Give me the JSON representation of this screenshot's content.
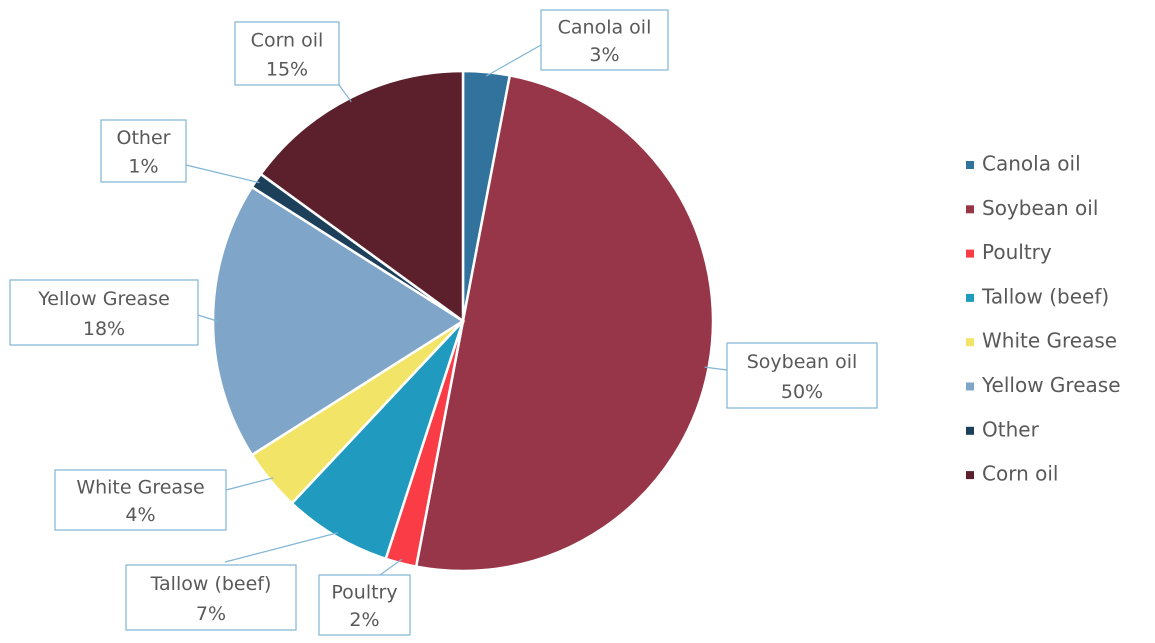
{
  "chart_data": {
    "type": "pie",
    "categories": [
      "Canola oil",
      "Soybean oil",
      "Poultry",
      "Tallow (beef)",
      "White Grease",
      "Yellow Grease",
      "Other",
      "Corn oil"
    ],
    "values": [
      3,
      50,
      2,
      7,
      4,
      18,
      1,
      15
    ],
    "value_labels": [
      "3%",
      "50%",
      "2%",
      "7%",
      "4%",
      "18%",
      "1%",
      "15%"
    ],
    "colors": [
      "#31739c",
      "#963648",
      "#fa3c46",
      "#209abf",
      "#f2e467",
      "#7fa6c9",
      "#1c3f5a",
      "#5c202c"
    ],
    "legend": "right"
  }
}
